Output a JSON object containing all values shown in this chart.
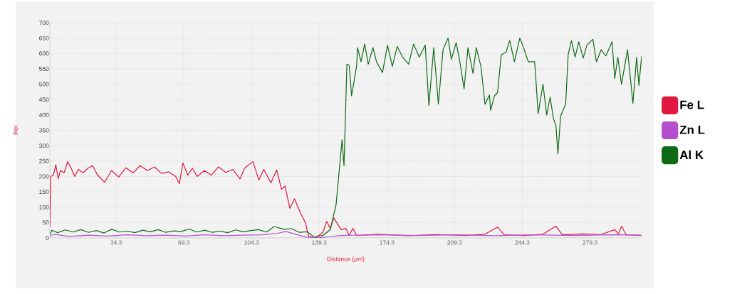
{
  "chart_data": {
    "type": "line",
    "xlabel": "Distance (µm)",
    "ylabel": "Roi",
    "xlim": [
      0,
      306
    ],
    "ylim": [
      0,
      700
    ],
    "xticks": [
      34.3,
      69.3,
      104.3,
      139.3,
      174.3,
      209.3,
      244.3,
      279.3
    ],
    "yticks": [
      0,
      50,
      100,
      150,
      200,
      250,
      300,
      350,
      400,
      450,
      500,
      550,
      600,
      650,
      700
    ],
    "grid": true,
    "legend": "right",
    "line_style": "solid",
    "series": [
      {
        "name": "Fe L",
        "color": "#e0173f",
        "x": [
          0,
          0.4,
          1.8,
          3.1,
          4.3,
          5.5,
          7.4,
          9.2,
          11,
          12.9,
          14.7,
          17.2,
          19.7,
          22.1,
          24.6,
          28.3,
          31.9,
          35.6,
          39.3,
          43,
          46.7,
          50.4,
          54.1,
          57.7,
          61.4,
          65.1,
          67,
          68.8,
          71.3,
          73.7,
          76.2,
          79.9,
          83.5,
          87.2,
          90.9,
          94.6,
          98.3,
          100.7,
          105,
          108.1,
          110.6,
          114.3,
          117.3,
          119.8,
          121.6,
          124.1,
          126.5,
          129.6,
          132.1,
          133.9,
          137.6,
          141.3,
          143.1,
          145,
          146.8,
          150.6,
          153,
          154.8,
          156.7,
          158.6,
          170,
          185,
          200,
          215,
          225,
          231.5,
          235,
          245,
          255,
          261.7,
          265,
          275,
          285,
          292.2,
          294,
          295.6,
          298,
          306
        ],
        "values": [
          35,
          200,
          204,
          238,
          192,
          219,
          212,
          248,
          227,
          200,
          223,
          212,
          227,
          235,
          205,
          181,
          219,
          198,
          228,
          212,
          235,
          219,
          231,
          210,
          215,
          200,
          177,
          244,
          204,
          227,
          200,
          219,
          204,
          231,
          213,
          223,
          192,
          227,
          248,
          188,
          223,
          179,
          221,
          158,
          169,
          96,
          127,
          81,
          50,
          4,
          0,
          19,
          54,
          31,
          65,
          27,
          31,
          8,
          31,
          8,
          12,
          7,
          11,
          8,
          12,
          35,
          10,
          8,
          12,
          38,
          10,
          13,
          11,
          27,
          12,
          38,
          10,
          8
        ]
      },
      {
        "name": "Zn L",
        "color": "#b44fd0",
        "x": [
          0,
          2,
          10,
          20,
          30,
          40,
          50,
          60,
          70,
          80,
          90,
          100,
          110,
          118,
          122,
          127,
          132,
          138,
          145,
          150,
          170,
          190,
          210,
          230,
          250,
          270,
          290,
          306
        ],
        "values": [
          5,
          12,
          5,
          9,
          6,
          10,
          7,
          9,
          6,
          10,
          7,
          9,
          10,
          15,
          21,
          12,
          3,
          0,
          4,
          8,
          10,
          8,
          10,
          7,
          10,
          8,
          10,
          9
        ]
      },
      {
        "name": "Al K",
        "color": "#0e6b14",
        "x": [
          0,
          1,
          4,
          8,
          12,
          16,
          20,
          24,
          28,
          32,
          36,
          40,
          44,
          48,
          52,
          56,
          60,
          64,
          68,
          72,
          76,
          80,
          84,
          88,
          92,
          96,
          100,
          104,
          108,
          112,
          116,
          121,
          125,
          129,
          133,
          136.4,
          141.3,
          145,
          148,
          151.1,
          152.1,
          153.6,
          154.8,
          156,
          158.6,
          159.1,
          160.9,
          162.8,
          164.6,
          167.1,
          168.9,
          172,
          174.6,
          177.1,
          179.6,
          182.4,
          185.5,
          188.1,
          191,
          194.1,
          196,
          198.5,
          200.9,
          203.3,
          205.9,
          207.6,
          210.1,
          212,
          214.2,
          216.2,
          218.8,
          220.5,
          222.9,
          225,
          227.3,
          227.9,
          229.9,
          231.5,
          233.4,
          235.9,
          237.8,
          240.2,
          243,
          244.5,
          247.4,
          250.7,
          252.5,
          255,
          256.9,
          258.7,
          260.4,
          261.7,
          262.7,
          264.1,
          266.7,
          268,
          269.7,
          271.6,
          273.5,
          275.8,
          277.7,
          280.8,
          282.6,
          285.1,
          287.5,
          290.7,
          292.1,
          293.7,
          295.6,
          298.7,
          301.5,
          303.4,
          304.6,
          306
        ],
        "values": [
          10,
          25,
          17,
          26,
          19,
          27,
          18,
          24,
          16,
          28,
          19,
          22,
          17,
          25,
          20,
          27,
          18,
          23,
          21,
          29,
          19,
          25,
          18,
          22,
          17,
          26,
          20,
          24,
          27,
          19,
          37,
          28,
          30,
          18,
          20,
          4,
          8,
          27,
          108,
          319,
          235,
          565,
          562,
          462,
          558,
          619,
          573,
          631,
          565,
          619,
          573,
          538,
          627,
          558,
          623,
          588,
          565,
          631,
          588,
          627,
          431,
          619,
          435,
          612,
          650,
          581,
          635,
          573,
          485,
          619,
          535,
          619,
          558,
          435,
          465,
          415,
          462,
          473,
          596,
          604,
          642,
          573,
          650,
          627,
          573,
          573,
          404,
          500,
          400,
          458,
          388,
          365,
          273,
          396,
          435,
          596,
          642,
          588,
          638,
          585,
          627,
          646,
          573,
          612,
          592,
          638,
          519,
          588,
          500,
          612,
          438,
          588,
          496,
          592
        ]
      }
    ]
  }
}
